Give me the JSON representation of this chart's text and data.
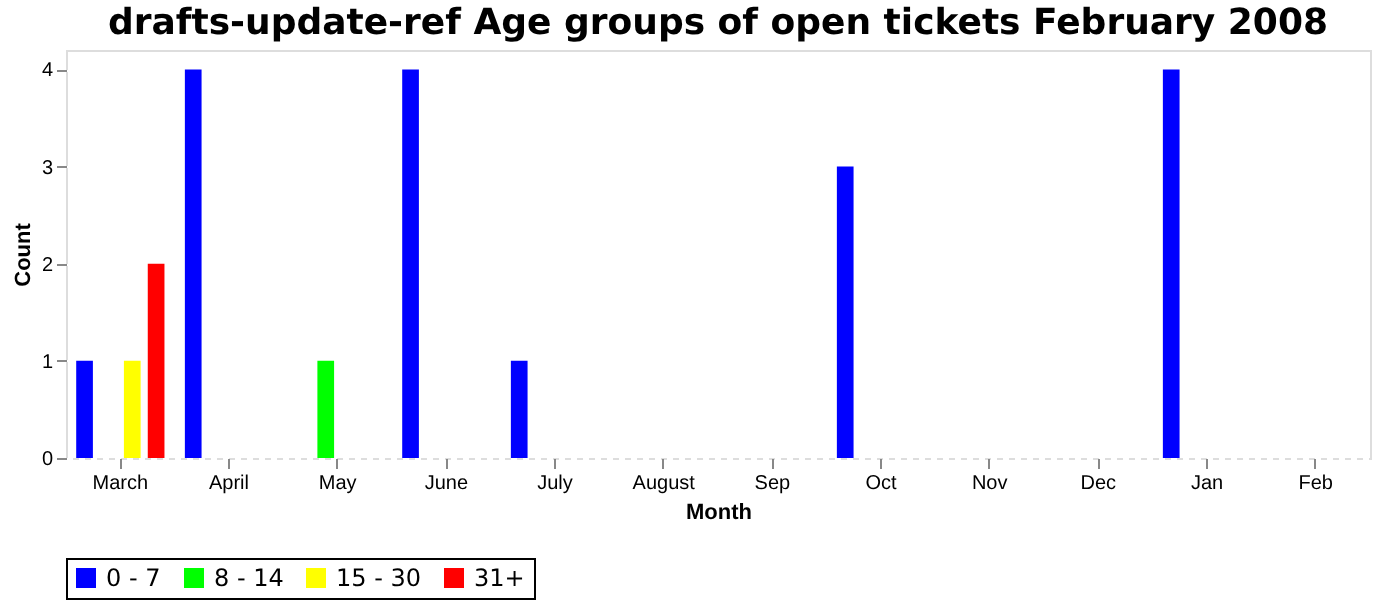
{
  "chart_data": {
    "type": "bar",
    "title": "drafts-update-ref Age groups of open tickets February 2008",
    "xlabel": "Month",
    "ylabel": "Count",
    "categories": [
      "March",
      "April",
      "May",
      "June",
      "July",
      "August",
      "Sep",
      "Oct",
      "Nov",
      "Dec",
      "Jan",
      "Feb"
    ],
    "series": [
      {
        "name": "0 - 7",
        "color": "#0000ff",
        "values": [
          1,
          4,
          null,
          4,
          1,
          null,
          null,
          3,
          null,
          null,
          4,
          null
        ]
      },
      {
        "name": "8 - 14",
        "color": "#00ff00",
        "values": [
          null,
          null,
          1,
          null,
          null,
          null,
          null,
          null,
          null,
          null,
          null,
          null
        ]
      },
      {
        "name": "15 - 30",
        "color": "#ffff00",
        "values": [
          1,
          null,
          null,
          null,
          null,
          null,
          null,
          null,
          null,
          null,
          null,
          null
        ]
      },
      {
        "name": "31+",
        "color": "#ff0000",
        "values": [
          2,
          null,
          null,
          null,
          null,
          null,
          null,
          null,
          null,
          null,
          null,
          null
        ]
      }
    ],
    "ylim": [
      0,
      4.2
    ],
    "yticks": [
      0,
      1,
      2,
      3,
      4
    ],
    "grid": "y",
    "legend": "bottom"
  }
}
